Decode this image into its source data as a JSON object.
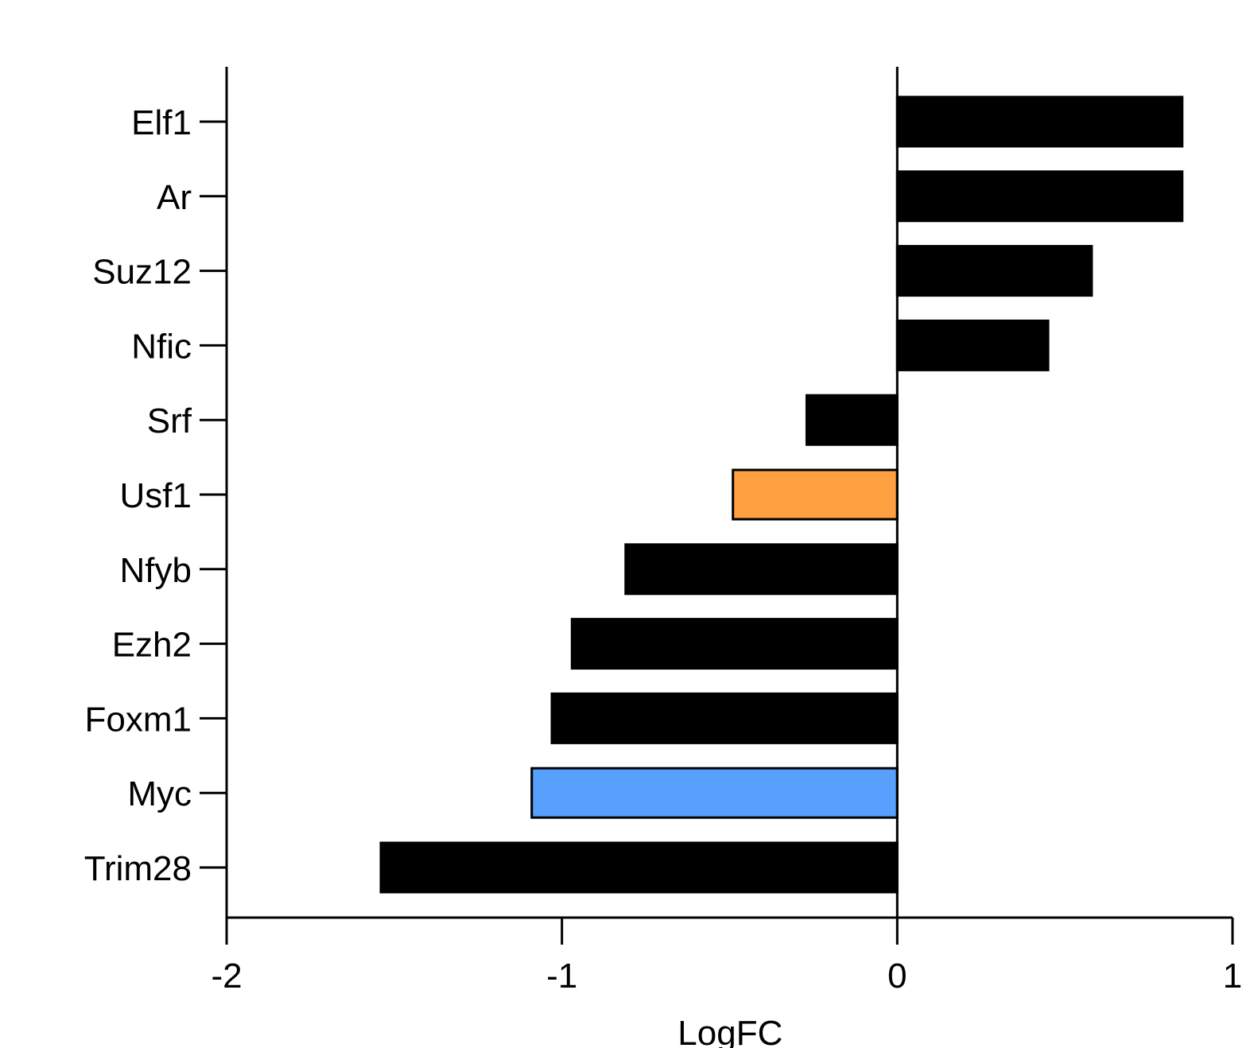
{
  "chart_data": {
    "type": "bar",
    "orientation": "horizontal",
    "categories": [
      "Elf1",
      "Ar",
      "Suz12",
      "Nfic",
      "Srf",
      "Usf1",
      "Nfyb",
      "Ezh2",
      "Foxm1",
      "Myc",
      "Trim28"
    ],
    "values": [
      0.85,
      0.85,
      0.58,
      0.45,
      -0.27,
      -0.49,
      -0.81,
      -0.97,
      -1.03,
      -1.09,
      -1.54
    ],
    "bar_colors": [
      "#000000",
      "#000000",
      "#000000",
      "#000000",
      "#000000",
      "#ffa040",
      "#000000",
      "#000000",
      "#000000",
      "#57a0fd",
      "#000000"
    ],
    "xlabel": "LogFC",
    "ylabel": "",
    "title": "",
    "xlim": [
      -2,
      1
    ],
    "xticks": [
      -2,
      -1,
      0,
      1
    ],
    "xtick_labels": [
      "-2",
      "-1",
      "0",
      "1"
    ],
    "grid": false,
    "legend": "none"
  }
}
